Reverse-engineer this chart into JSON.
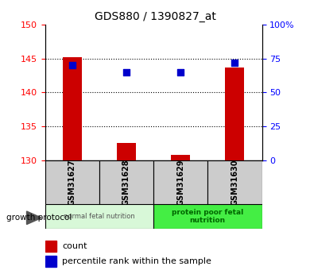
{
  "title": "GDS880 / 1390827_at",
  "samples": [
    "GSM31627",
    "GSM31628",
    "GSM31629",
    "GSM31630"
  ],
  "count_values": [
    145.2,
    132.5,
    130.8,
    143.7
  ],
  "percentile_values": [
    70,
    65,
    65,
    72
  ],
  "ylim_left": [
    130,
    150
  ],
  "ylim_right": [
    0,
    100
  ],
  "yticks_left": [
    130,
    135,
    140,
    145,
    150
  ],
  "yticks_right": [
    0,
    25,
    50,
    75,
    100
  ],
  "ytick_labels_right": [
    "0",
    "25",
    "50",
    "75",
    "100%"
  ],
  "group1_label": "normal fetal nutrition",
  "group2_label": "protein poor fetal\nnutrition",
  "group_label_title": "growth protocol",
  "bar_color": "#cc0000",
  "dot_color": "#0000cc",
  "group1_bg": "#d8f8d8",
  "group2_bg": "#44ee44",
  "sample_box_bg": "#cccccc",
  "legend_count_label": "count",
  "legend_pct_label": "percentile rank within the sample",
  "bar_width": 0.35,
  "dot_size": 30
}
